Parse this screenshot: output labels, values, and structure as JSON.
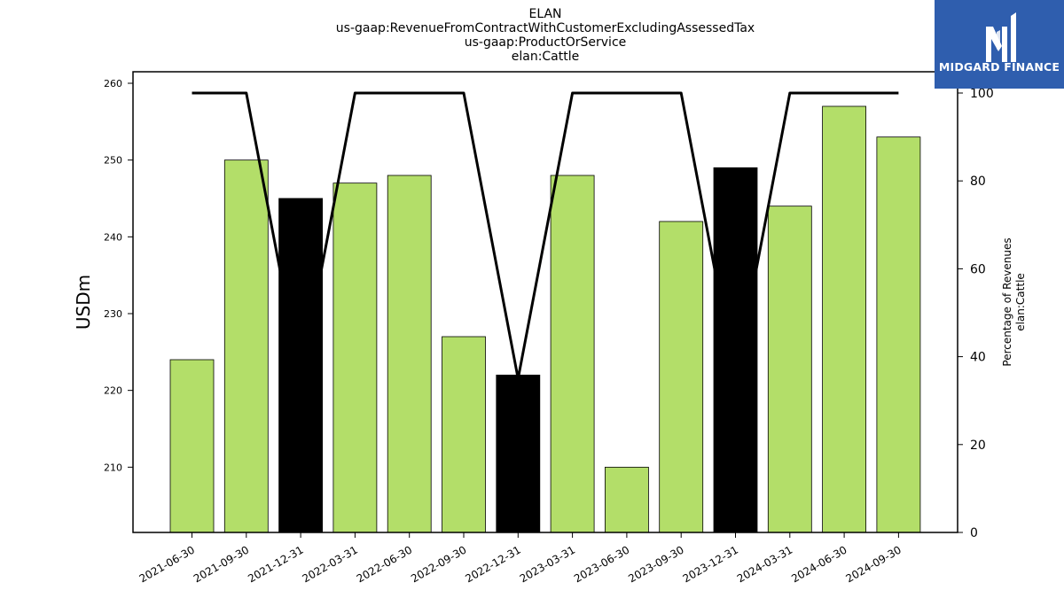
{
  "header": {
    "line1": "ELAN",
    "line2": "us-gaap:RevenueFromContractWithCustomerExcludingAssessedTax",
    "line3": "us-gaap:ProductOrService",
    "line4": "elan:Cattle"
  },
  "logo": {
    "text": "MIDGARD FINANCE",
    "background": "#2f5eae"
  },
  "chart_data": {
    "type": "bar",
    "title": "ELAN\nus-gaap:RevenueFromContractWithCustomerExcludingAssessedTax\nus-gaap:ProductOrService\nelan:Cattle",
    "ylabel": "USDm",
    "y2label_line1": "Percentage of Revenues",
    "y2label_line2": "elan:Cattle",
    "categories": [
      "2021-06-30",
      "2021-09-30",
      "2021-12-31",
      "2022-03-31",
      "2022-06-30",
      "2022-09-30",
      "2022-12-31",
      "2023-03-31",
      "2023-06-30",
      "2023-09-30",
      "2023-12-31",
      "2024-03-31",
      "2024-06-30",
      "2024-09-30"
    ],
    "values": [
      224,
      250,
      245,
      247,
      248,
      227,
      222,
      248,
      210,
      242,
      249,
      244,
      257,
      253
    ],
    "bar_colors": [
      "#b3de69",
      "#b3de69",
      "#000000",
      "#b3de69",
      "#b3de69",
      "#b3de69",
      "#000000",
      "#b3de69",
      "#b3de69",
      "#b3de69",
      "#000000",
      "#b3de69",
      "#b3de69",
      "#b3de69"
    ],
    "percentage": [
      100,
      100,
      35,
      100,
      100,
      100,
      35,
      100,
      100,
      100,
      35,
      100,
      100,
      100
    ],
    "ylim": [
      201.5,
      261.5
    ],
    "yticks": [
      210,
      220,
      230,
      240,
      250,
      260
    ],
    "y2lim": [
      0,
      100
    ],
    "y2ticks": [
      0,
      20,
      40,
      60,
      80,
      100
    ],
    "colors": {
      "bar": "#b3de69",
      "bar_highlight": "#000000",
      "line": "#000000"
    },
    "grid": false,
    "legend": "none"
  }
}
